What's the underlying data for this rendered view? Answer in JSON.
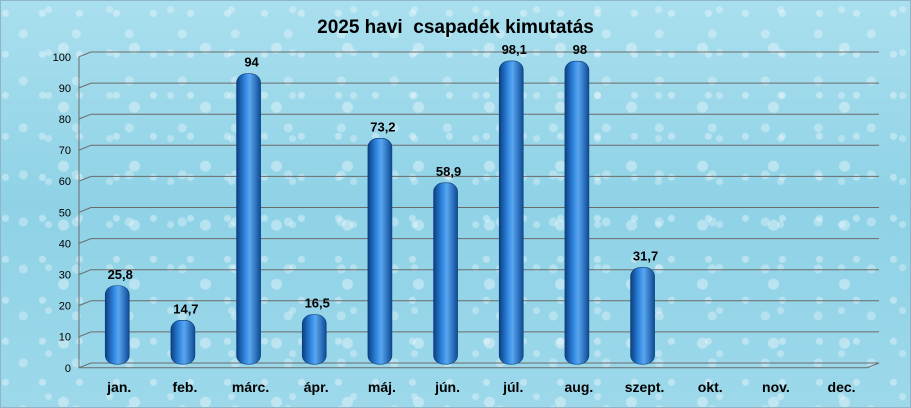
{
  "chart_data": {
    "type": "bar",
    "title": "2025 havi  csapadék kimutatás",
    "categories": [
      "jan.",
      "feb.",
      "márc.",
      "ápr.",
      "máj.",
      "jún.",
      "júl.",
      "aug.",
      "szept.",
      "okt.",
      "nov.",
      "dec."
    ],
    "values": [
      25.8,
      14.7,
      94,
      16.5,
      73.2,
      58.9,
      98.1,
      98,
      31.7,
      null,
      null,
      null
    ],
    "data_labels": [
      "25,8",
      "14,7",
      "94",
      "16,5",
      "73,2",
      "58,9",
      "98,1",
      "98",
      "31,7",
      "",
      "",
      ""
    ],
    "yticks": [
      "0",
      "10",
      "20",
      "30",
      "40",
      "50",
      "60",
      "70",
      "80",
      "90",
      "100"
    ],
    "ylim": [
      0,
      100
    ],
    "grid": true,
    "bar_color": "#1565b8"
  }
}
